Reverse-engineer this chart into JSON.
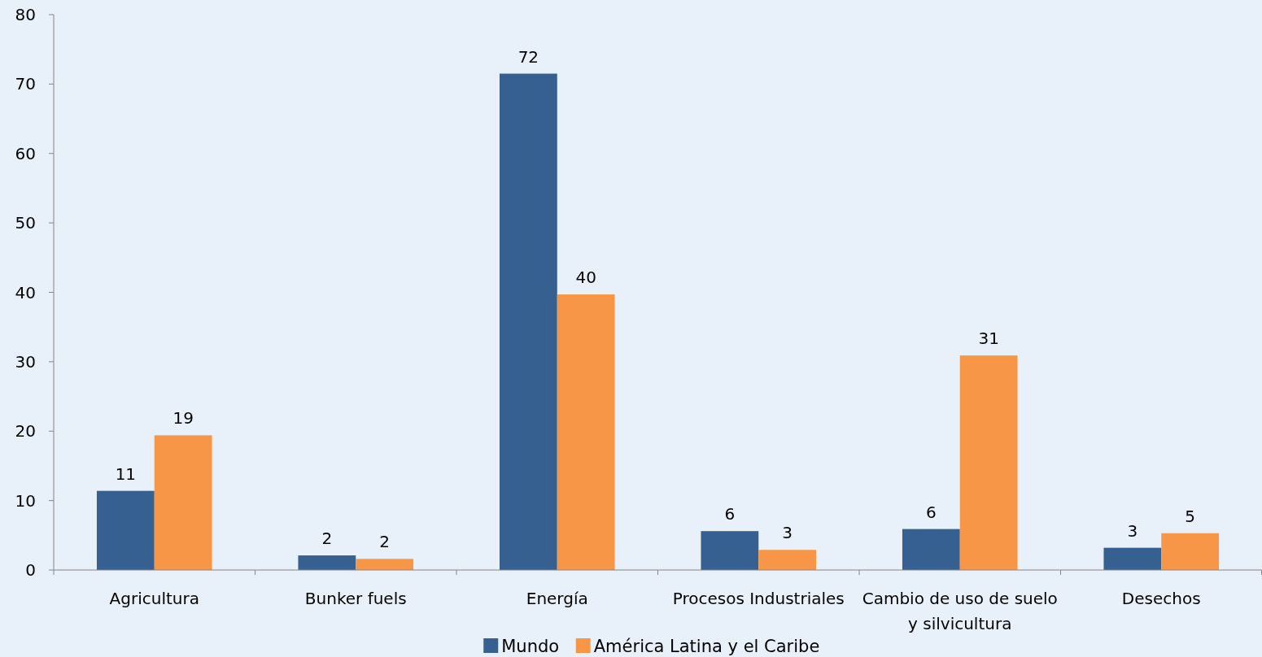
{
  "chart_data": {
    "type": "bar",
    "categories": [
      "Agricultura",
      "Bunker fuels",
      "Energía",
      "Procesos Industriales",
      "Cambio de uso de suelo y silvicultura",
      "Desechos"
    ],
    "series": [
      {
        "name": "Mundo",
        "color": "#35608f",
        "values": [
          11.4,
          2.1,
          71.5,
          5.6,
          5.9,
          3.2
        ],
        "value_labels": [
          "11",
          "2",
          "72",
          "6",
          "6",
          "3"
        ]
      },
      {
        "name": "América Latina y el Caribe",
        "color": "#f79646",
        "values": [
          19.4,
          1.6,
          39.7,
          2.9,
          30.9,
          5.3
        ],
        "value_labels": [
          "19",
          "2",
          "40",
          "3",
          "31",
          "5"
        ]
      }
    ],
    "ylim": [
      0,
      80
    ],
    "yticks": [
      0,
      10,
      20,
      30,
      40,
      50,
      60,
      70,
      80
    ],
    "grid": false,
    "legend": "bottom"
  }
}
